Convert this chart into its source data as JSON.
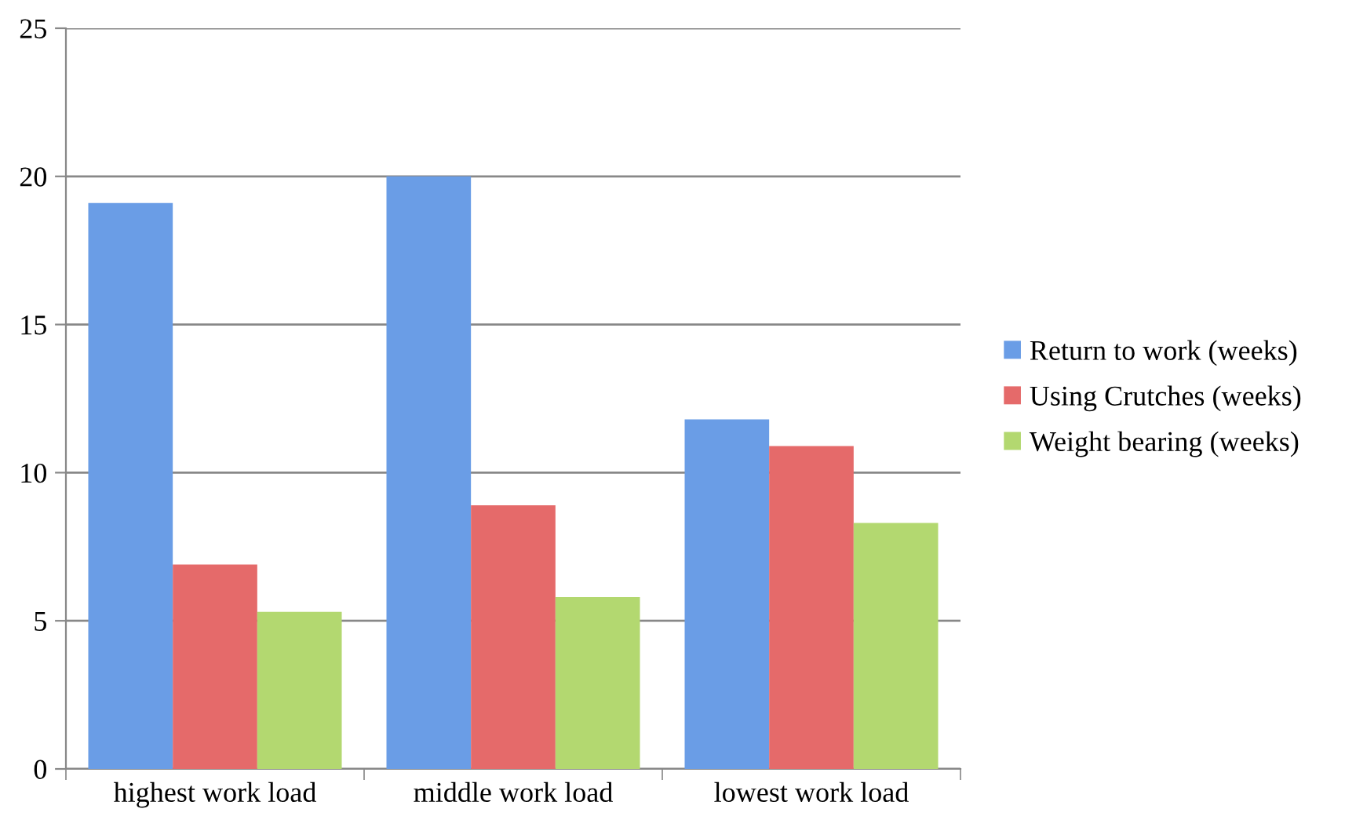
{
  "chart_data": {
    "type": "bar",
    "categories": [
      "highest work load",
      "middle work load",
      "lowest work load"
    ],
    "series": [
      {
        "name": "Return to work (weeks)",
        "color": "#6a9de6",
        "values": [
          19.1,
          20.0,
          11.8
        ]
      },
      {
        "name": "Using Crutches (weeks)",
        "color": "#e56a6a",
        "values": [
          6.9,
          8.9,
          10.9
        ]
      },
      {
        "name": "Weight bearing (weeks)",
        "color": "#b3d870",
        "values": [
          5.3,
          5.8,
          8.3
        ]
      }
    ],
    "ylim": [
      0,
      25
    ],
    "yticks": [
      0,
      5,
      10,
      15,
      20,
      25
    ],
    "grid": "y",
    "legend": "right"
  }
}
